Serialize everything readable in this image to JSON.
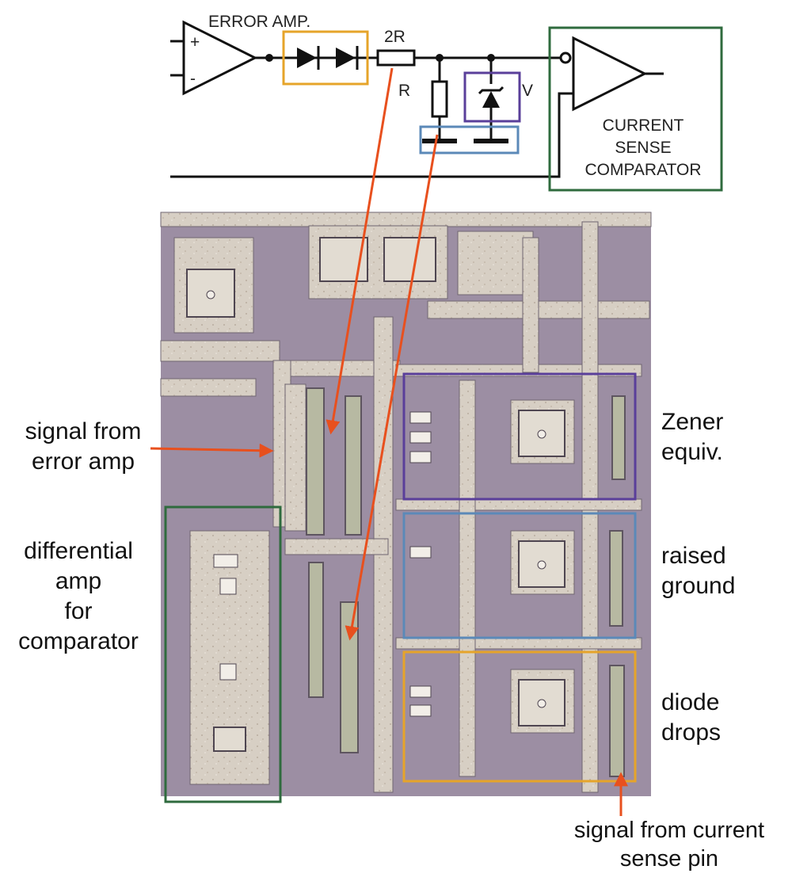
{
  "schematic": {
    "error_amp_label": "ERROR AMP.",
    "plus_sign": "+",
    "minus_sign": "-",
    "resistor_2r_label": "2R",
    "resistor_r_label": "R",
    "zener_v_label": "V",
    "comparator_label_lines": [
      "CURRENT",
      "SENSE",
      "COMPARATOR"
    ]
  },
  "annotations": {
    "signal_from_error_amp": [
      "signal from",
      "error amp"
    ],
    "differential_amp": [
      "differential",
      "amp",
      "for",
      "comparator"
    ],
    "zener_equiv": [
      "Zener",
      "equiv."
    ],
    "raised_ground": [
      "raised",
      "ground"
    ],
    "diode_drops": [
      "diode",
      "drops"
    ],
    "signal_from_current_sense": [
      "signal from current",
      "sense pin"
    ]
  },
  "colors": {
    "wire": "#111111",
    "arrow": "#e8501e",
    "green_box": "#2f6b3e",
    "orange_box": "#e6a42a",
    "purple_box": "#5a3f9a",
    "blue_box": "#5b89b8",
    "die_base": "#9c8ea3",
    "die_metal": "#d9d2c8"
  }
}
